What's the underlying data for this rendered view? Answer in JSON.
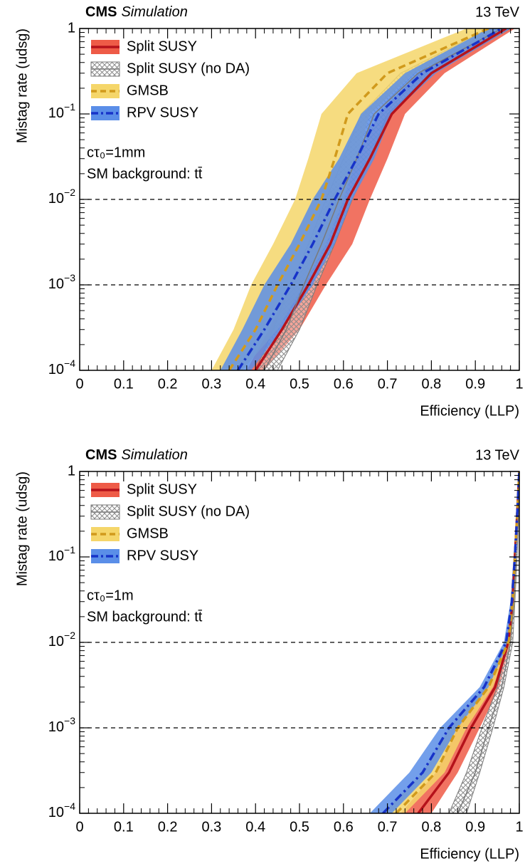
{
  "chart_data": [
    {
      "type": "line",
      "experiment": "CMS",
      "status": "Simulation",
      "energy": "13 TeV",
      "annotations": [
        "cτ₀=1mm",
        "SM background: tt̄"
      ],
      "xlabel": "Efficiency (LLP)",
      "ylabel": "Mistag rate (udsg)",
      "xlim": [
        0,
        1
      ],
      "ylim": [
        0.0001,
        1
      ],
      "log_y": true,
      "xticks": [
        0,
        0.1,
        0.2,
        0.3,
        0.4,
        0.5,
        0.6,
        0.7,
        0.8,
        0.9,
        1
      ],
      "yticks": [
        {
          "value": 0.0001,
          "label": "10−4"
        },
        {
          "value": 0.001,
          "label": "10−3"
        },
        {
          "value": 0.01,
          "label": "10−2"
        },
        {
          "value": 0.1,
          "label": "10−1"
        },
        1
      ],
      "hlines": [
        0.01,
        0.001
      ],
      "legend": "upper left",
      "series": [
        {
          "name": "Split SUSY",
          "color": "#b5121b",
          "band_color": "#ee5b47",
          "style": "solid",
          "values": [
            0.0001,
            0.0003,
            0.001,
            0.003,
            0.01,
            0.03,
            0.1,
            0.3,
            1
          ],
          "x": [
            0.4,
            0.46,
            0.52,
            0.57,
            0.61,
            0.66,
            0.71,
            0.8,
            0.97
          ],
          "band_low": [
            0.38,
            0.43,
            0.48,
            0.53,
            0.57,
            0.63,
            0.68,
            0.77,
            0.95
          ],
          "band_high": [
            0.42,
            0.5,
            0.56,
            0.62,
            0.66,
            0.7,
            0.74,
            0.83,
            0.99
          ]
        },
        {
          "name": "Split SUSY (no DA)",
          "color": "#7a7a7a",
          "band_color": "#9a9a9a",
          "style": "hatched",
          "values": [
            0.0001,
            0.0003,
            0.001,
            0.003,
            0.01,
            0.03,
            0.1,
            0.3,
            1
          ],
          "x": [
            0.42,
            0.47,
            0.51,
            0.55,
            0.59,
            0.63,
            0.67,
            0.77,
            0.96
          ],
          "band_low": [
            0.4,
            0.44,
            0.48,
            0.52,
            0.56,
            0.6,
            0.64,
            0.73,
            0.93
          ],
          "band_high": [
            0.45,
            0.5,
            0.54,
            0.58,
            0.62,
            0.66,
            0.7,
            0.8,
            0.98
          ]
        },
        {
          "name": "GMSB",
          "color": "#d19a1c",
          "band_color": "#f5d66a",
          "style": "dashed",
          "values": [
            0.0001,
            0.0003,
            0.001,
            0.003,
            0.01,
            0.03,
            0.1,
            0.3,
            1
          ],
          "x": [
            0.34,
            0.4,
            0.45,
            0.5,
            0.55,
            0.58,
            0.61,
            0.7,
            0.93
          ],
          "band_low": [
            0.3,
            0.35,
            0.39,
            0.44,
            0.49,
            0.52,
            0.55,
            0.63,
            0.88
          ],
          "band_high": [
            0.37,
            0.45,
            0.51,
            0.56,
            0.6,
            0.63,
            0.66,
            0.76,
            0.97
          ]
        },
        {
          "name": "RPV SUSY",
          "color": "#1733c9",
          "band_color": "#5a8ee8",
          "style": "dashdot",
          "values": [
            0.0001,
            0.0003,
            0.001,
            0.003,
            0.01,
            0.03,
            0.1,
            0.3,
            1
          ],
          "x": [
            0.36,
            0.42,
            0.48,
            0.53,
            0.58,
            0.63,
            0.68,
            0.78,
            0.96
          ],
          "band_low": [
            0.32,
            0.37,
            0.42,
            0.48,
            0.53,
            0.59,
            0.64,
            0.74,
            0.93
          ],
          "band_high": [
            0.39,
            0.46,
            0.53,
            0.58,
            0.62,
            0.67,
            0.71,
            0.81,
            0.98
          ]
        }
      ]
    },
    {
      "type": "line",
      "experiment": "CMS",
      "status": "Simulation",
      "energy": "13 TeV",
      "annotations": [
        "cτ₀=1m",
        "SM background: tt̄"
      ],
      "xlabel": "Efficiency (LLP)",
      "ylabel": "Mistag rate (udsg)",
      "xlim": [
        0,
        1
      ],
      "ylim": [
        0.0001,
        1
      ],
      "log_y": true,
      "xticks": [
        0,
        0.1,
        0.2,
        0.3,
        0.4,
        0.5,
        0.6,
        0.7,
        0.8,
        0.9,
        1
      ],
      "yticks": [
        {
          "value": 0.0001,
          "label": "10−4"
        },
        {
          "value": 0.001,
          "label": "10−3"
        },
        {
          "value": 0.01,
          "label": "10−2"
        },
        {
          "value": 0.1,
          "label": "10−1"
        },
        1
      ],
      "hlines": [
        0.01,
        0.001
      ],
      "legend": "upper left",
      "series": [
        {
          "name": "Split SUSY",
          "color": "#b5121b",
          "band_color": "#ee5b47",
          "style": "solid",
          "values": [
            0.0001,
            0.0003,
            0.001,
            0.003,
            0.01,
            0.03,
            0.1,
            0.3,
            1
          ],
          "x": [
            0.77,
            0.84,
            0.89,
            0.945,
            0.975,
            0.985,
            0.99,
            0.995,
            1.0
          ],
          "band_low": [
            0.73,
            0.81,
            0.86,
            0.93,
            0.97,
            0.98,
            0.987,
            0.993,
            0.998
          ],
          "band_high": [
            0.8,
            0.86,
            0.91,
            0.955,
            0.98,
            0.99,
            0.993,
            0.997,
            1.0
          ]
        },
        {
          "name": "Split SUSY (no DA)",
          "color": "#7a7a7a",
          "band_color": "#9a9a9a",
          "style": "hatched",
          "values": [
            0.0001,
            0.0003,
            0.001,
            0.003,
            0.01,
            0.03,
            0.1,
            0.3,
            1
          ],
          "x": [
            0.86,
            0.9,
            0.93,
            0.96,
            0.98,
            0.988,
            0.992,
            0.996,
            1.0
          ],
          "band_low": [
            0.84,
            0.88,
            0.915,
            0.95,
            0.975,
            0.985,
            0.99,
            0.994,
            0.998
          ],
          "band_high": [
            0.88,
            0.91,
            0.94,
            0.965,
            0.985,
            0.99,
            0.995,
            0.998,
            1.0
          ]
        },
        {
          "name": "GMSB",
          "color": "#d19a1c",
          "band_color": "#f5d66a",
          "style": "dashed",
          "values": [
            0.0001,
            0.0003,
            0.001,
            0.003,
            0.01,
            0.03,
            0.1,
            0.3,
            1
          ],
          "x": [
            0.72,
            0.81,
            0.86,
            0.93,
            0.975,
            0.985,
            0.99,
            0.995,
            1.0
          ],
          "band_low": [
            0.69,
            0.78,
            0.84,
            0.92,
            0.97,
            0.98,
            0.987,
            0.993,
            0.998
          ],
          "band_high": [
            0.74,
            0.83,
            0.88,
            0.94,
            0.98,
            0.99,
            0.993,
            0.997,
            1.0
          ]
        },
        {
          "name": "RPV SUSY",
          "color": "#1733c9",
          "band_color": "#5a8ee8",
          "style": "dashdot",
          "values": [
            0.0001,
            0.0003,
            0.001,
            0.003,
            0.01,
            0.03,
            0.1,
            0.3,
            1
          ],
          "x": [
            0.69,
            0.78,
            0.84,
            0.92,
            0.97,
            0.983,
            0.99,
            0.995,
            1.0
          ],
          "band_low": [
            0.66,
            0.75,
            0.82,
            0.91,
            0.965,
            0.98,
            0.987,
            0.993,
            0.998
          ],
          "band_high": [
            0.71,
            0.8,
            0.86,
            0.93,
            0.975,
            0.988,
            0.993,
            0.997,
            1.0
          ]
        }
      ]
    }
  ]
}
